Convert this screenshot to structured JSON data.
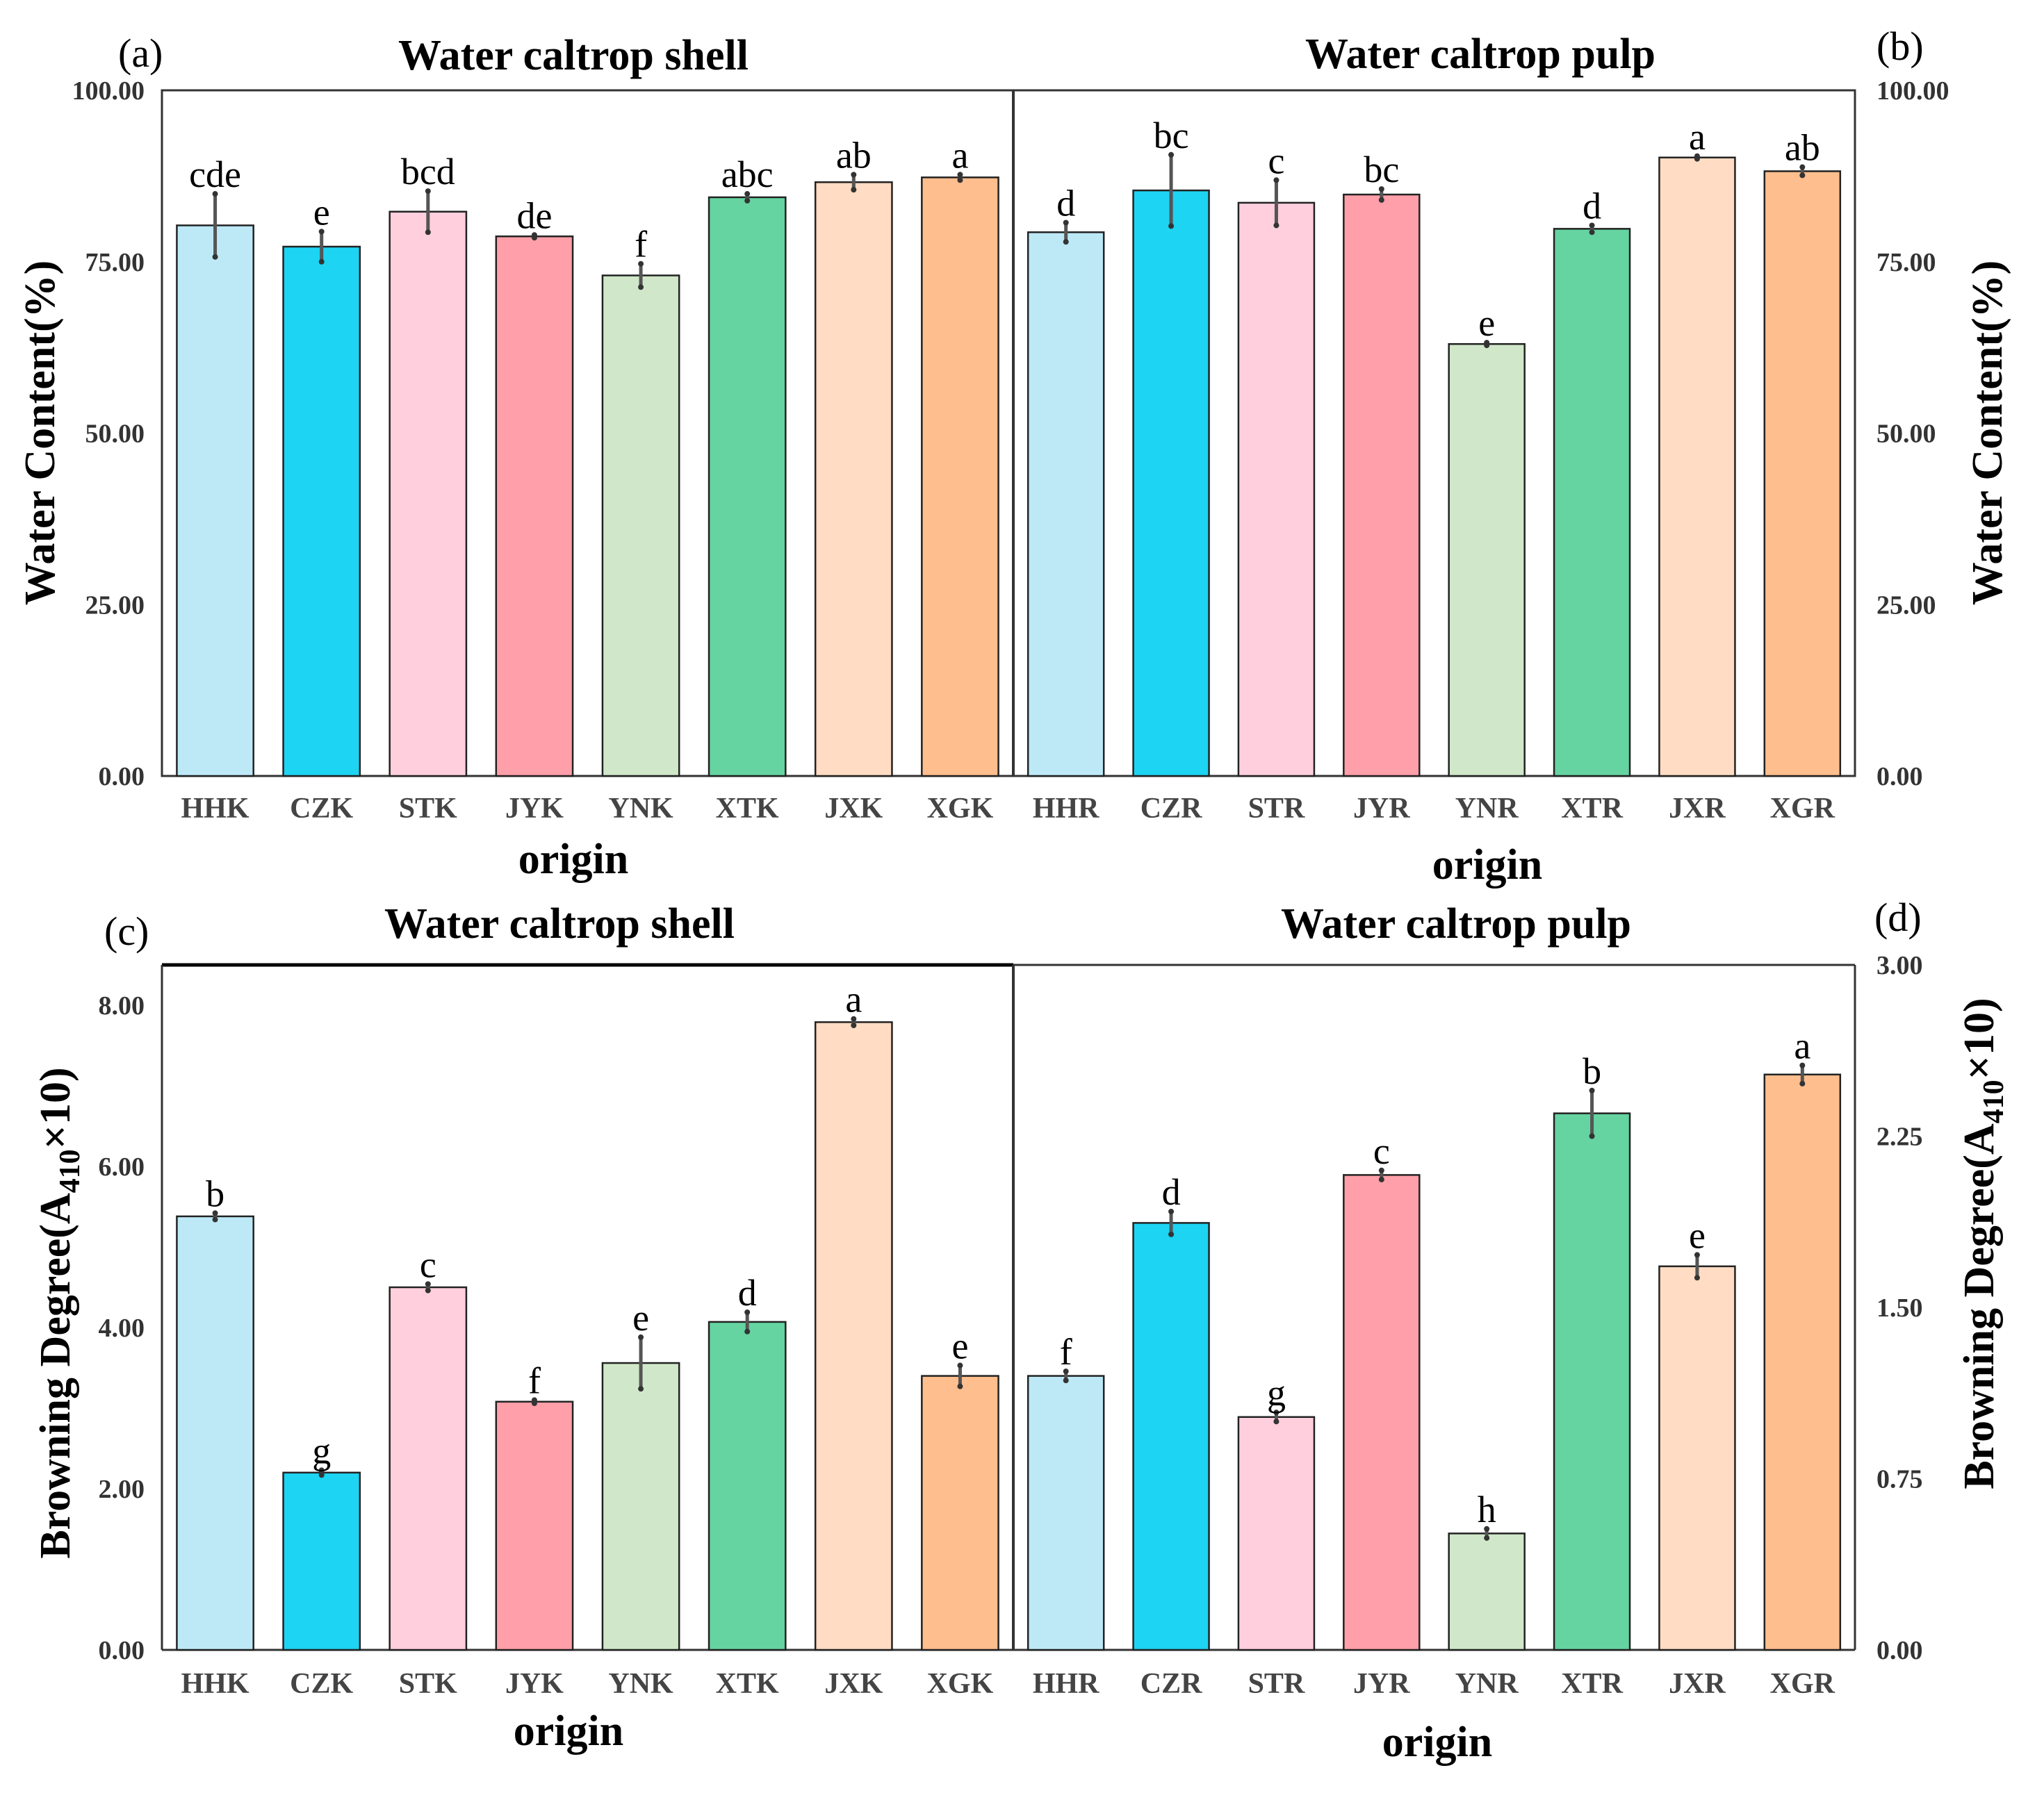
{
  "figure": {
    "bar_colors": [
      "#bde9f7",
      "#1dd4f2",
      "#ffcfde",
      "#ff9fa9",
      "#d0e8c9",
      "#65d4a0",
      "#ffdcc3",
      "#ffbe8e"
    ],
    "axis_color": "#333333",
    "error_color": "#555555"
  },
  "chart_data": [
    {
      "type": "bar",
      "panel_label": "(a)",
      "title": "Water caltrop shell",
      "xlabel": "origin",
      "ylabel": "Water Content(%)",
      "ylim": [
        0,
        100
      ],
      "yticks": [
        "0.00",
        "25.00",
        "50.00",
        "75.00",
        "100.00"
      ],
      "categories": [
        "HHK",
        "CZK",
        "STK",
        "JYK",
        "YNK",
        "XTK",
        "JXK",
        "XGK"
      ],
      "values": [
        80.3,
        77.2,
        82.3,
        78.7,
        73.0,
        84.4,
        86.6,
        87.3
      ],
      "errors": [
        4.6,
        2.2,
        3.0,
        0.2,
        1.7,
        0.5,
        1.1,
        0.4
      ],
      "letters": [
        "cde",
        "e",
        "bcd",
        "de",
        "f",
        "abc",
        "ab",
        "a"
      ]
    },
    {
      "type": "bar",
      "panel_label": "(b)",
      "title": "Water caltrop pulp",
      "xlabel": "origin",
      "ylabel": "Water Content(%)",
      "ylim": [
        0,
        100
      ],
      "yticks": [
        "0.00",
        "25.00",
        "50.00",
        "75.00",
        "100.00"
      ],
      "categories": [
        "HHR",
        "CZR",
        "STR",
        "JYR",
        "YNR",
        "XTR",
        "JXR",
        "XGR"
      ],
      "values": [
        79.3,
        85.4,
        83.6,
        84.8,
        63.0,
        79.8,
        90.2,
        88.2
      ],
      "errors": [
        1.4,
        5.2,
        3.3,
        0.8,
        0.2,
        0.5,
        0.2,
        0.6
      ],
      "letters": [
        "d",
        "bc",
        "c",
        "bc",
        "e",
        "d",
        "a",
        "ab"
      ]
    },
    {
      "type": "bar",
      "panel_label": "(c)",
      "title": "Water caltrop shell",
      "xlabel": "origin",
      "ylabel_main": "Browning Degree(A",
      "ylabel_sub": "410",
      "ylabel_tail": "×10)",
      "ylim": [
        0,
        8.5
      ],
      "yticks": [
        "0.00",
        "2.00",
        "4.00",
        "6.00",
        "8.00"
      ],
      "ytick_values": [
        0,
        2,
        4,
        6,
        8
      ],
      "categories": [
        "HHK",
        "CZK",
        "STK",
        "JYK",
        "YNK",
        "XTK",
        "JXK",
        "XGK"
      ],
      "values": [
        5.38,
        2.2,
        4.5,
        3.08,
        3.56,
        4.07,
        7.79,
        3.4
      ],
      "errors": [
        0.04,
        0.03,
        0.04,
        0.02,
        0.32,
        0.12,
        0.04,
        0.13
      ],
      "letters": [
        "b",
        "g",
        "c",
        "f",
        "e",
        "d",
        "a",
        "e"
      ]
    },
    {
      "type": "bar",
      "panel_label": "(d)",
      "title": "Water caltrop pulp",
      "xlabel": "origin",
      "ylabel_main": "Browning Degree(A",
      "ylabel_sub": "410",
      "ylabel_tail": "×10)",
      "ylim": [
        0,
        3.0
      ],
      "yticks": [
        "0.00",
        "0.75",
        "1.50",
        "2.25",
        "3.00"
      ],
      "ytick_values": [
        0,
        0.75,
        1.5,
        2.25,
        3.0
      ],
      "categories": [
        "HHR",
        "CZR",
        "STR",
        "JYR",
        "YNR",
        "XTR",
        "JXR",
        "XGR"
      ],
      "values": [
        1.2,
        1.87,
        1.02,
        2.08,
        0.51,
        2.35,
        1.68,
        2.52
      ],
      "errors": [
        0.02,
        0.05,
        0.02,
        0.02,
        0.02,
        0.1,
        0.05,
        0.04
      ],
      "letters": [
        "f",
        "d",
        "g",
        "c",
        "h",
        "b",
        "e",
        "a"
      ]
    }
  ]
}
